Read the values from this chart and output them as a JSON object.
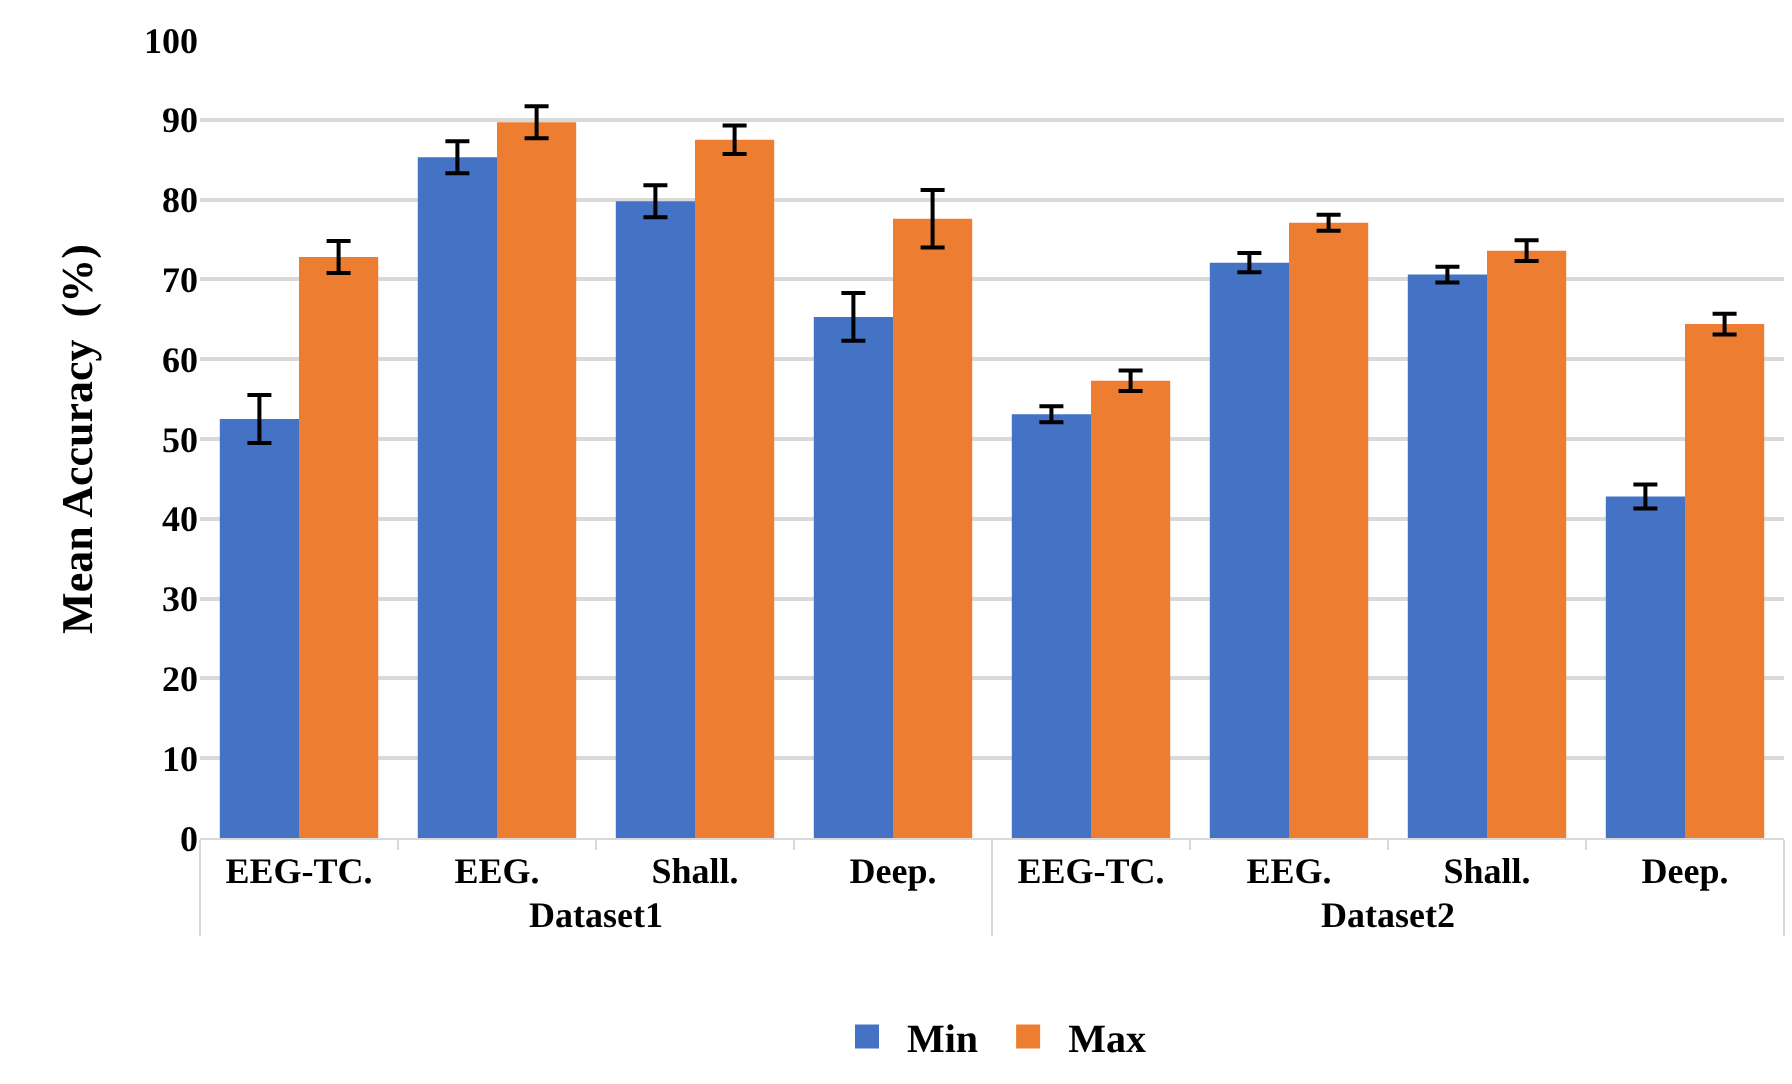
{
  "chart_data": {
    "type": "bar",
    "ylabel": "Mean Accuracy  (%)",
    "categories": [
      "EEG-TC.",
      "EEG.",
      "Shall.",
      "Deep.",
      "EEG-TC.",
      "EEG.",
      "Shall.",
      "Deep."
    ],
    "annotations": [
      "Dataset1",
      "Dataset2"
    ],
    "series": [
      {
        "name": "Min",
        "color": "#4472c4",
        "values": [
          52.5,
          85.3,
          79.8,
          65.3,
          53.1,
          72.1,
          70.6,
          42.8
        ],
        "errors": [
          3,
          2,
          2,
          3,
          1,
          1.2,
          1,
          1.5
        ]
      },
      {
        "name": "Max",
        "color": "#ed7d31",
        "values": [
          72.8,
          89.7,
          87.5,
          77.6,
          57.3,
          77.1,
          73.6,
          64.4
        ],
        "errors": [
          2,
          2,
          1.8,
          3.6,
          1.3,
          1,
          1.3,
          1.3
        ]
      }
    ],
    "ylim": [
      0,
      100
    ],
    "yticks": [
      0,
      10,
      20,
      30,
      40,
      50,
      60,
      70,
      80,
      90,
      100
    ],
    "grid": "y",
    "legend": "bottom"
  }
}
